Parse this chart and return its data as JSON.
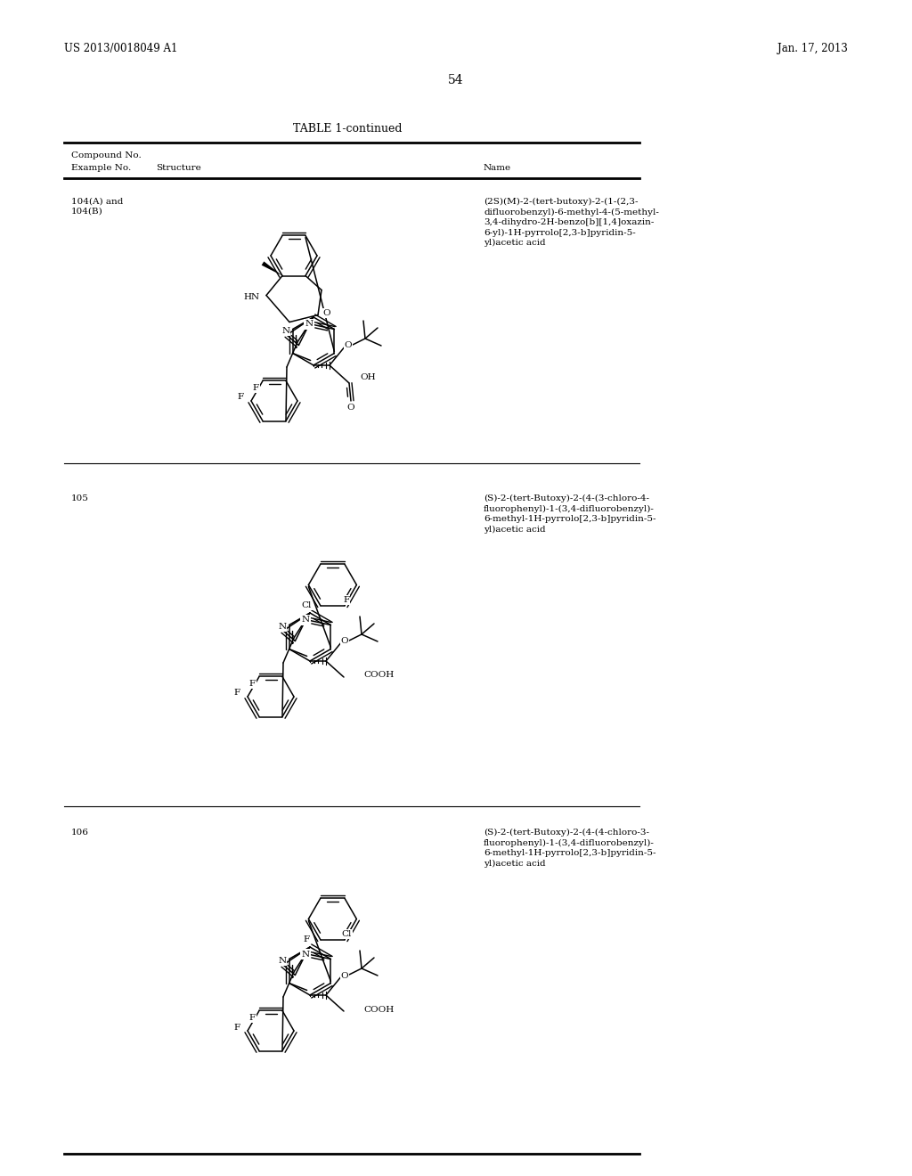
{
  "header_left": "US 2013/0018049 A1",
  "header_right": "Jan. 17, 2013",
  "page_number": "54",
  "table_title": "TABLE 1-continued",
  "col1_header1": "Compound No.",
  "col1_header2": "Example No.",
  "col2_header": "Structure",
  "col3_header": "Name",
  "row1_compound": "104(A) and\n104(B)",
  "row1_name": "(2S)(M)-2-(tert-butoxy)-2-(1-(2,3-\ndifluorobenzyl)-6-methyl-4-(5-methyl-\n3,4-dihydro-2H-benzo[b][1,4]oxazin-\n6-yl)-1H-pyrrolo[2,3-b]pyridin-5-\nyl)acetic acid",
  "row2_compound": "105",
  "row2_name": "(S)-2-(tert-Butoxy)-2-(4-(3-chloro-4-\nfluorophenyl)-1-(3,4-difluorobenzyl)-\n6-methyl-1H-pyrrolo[2,3-b]pyridin-5-\nyl)acetic acid",
  "row3_compound": "106",
  "row3_name": "(S)-2-(tert-Butoxy)-2-(4-(4-chloro-3-\nfluorophenyl)-1-(3,4-difluorobenzyl)-\n6-methyl-1H-pyrrolo[2,3-b]pyridin-5-\nyl)acetic acid",
  "bg_color": "#ffffff",
  "text_color": "#000000"
}
